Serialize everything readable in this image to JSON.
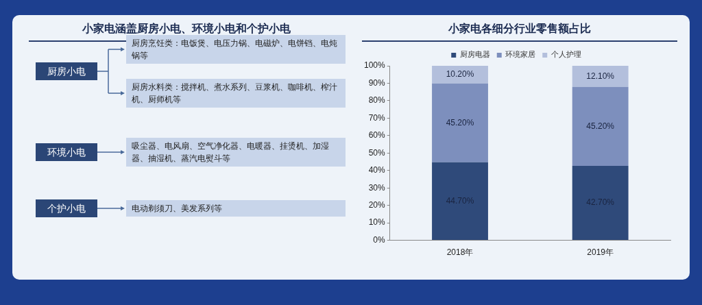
{
  "chart_data": [
    {
      "type": "other",
      "title": "小家电涵盖厨房小电、环境小电和个护小电",
      "annotations": [
        "厨房小电",
        "厨房烹饪类：电饭煲、电压力锅、电磁炉、电饼铛、电炖锅等",
        "厨房水料类：搅拌机、煮水系列、豆浆机、咖啡机、榨汁机、厨师机等",
        "环境小电",
        "吸尘器、电风扇、空气净化器、电暖器、挂烫机、加湿器、抽湿机、蒸汽电熨斗等",
        "个护小电",
        "电动剃须刀、美发系列等"
      ]
    },
    {
      "type": "bar",
      "title": "小家电各细分行业零售额占比",
      "categories": [
        "2018年",
        "2019年"
      ],
      "stacked": true,
      "legend": "top",
      "ylim": [
        0,
        100
      ],
      "yticks": [
        {
          "value": 0,
          "label": "0%"
        },
        {
          "value": 10,
          "label": "10%"
        },
        {
          "value": 20,
          "label": "20%"
        },
        {
          "value": 30,
          "label": "30%"
        },
        {
          "value": 40,
          "label": "40%"
        },
        {
          "value": 50,
          "label": "50%"
        },
        {
          "value": 60,
          "label": "60%"
        },
        {
          "value": 70,
          "label": "70%"
        },
        {
          "value": 80,
          "label": "80%"
        },
        {
          "value": 90,
          "label": "90%"
        },
        {
          "value": 100,
          "label": "100%"
        }
      ],
      "series": [
        {
          "name": "厨房电器",
          "color": "#2f4a7a",
          "values": [
            44.7,
            42.7
          ],
          "value_labels": [
            "44.70%",
            "42.70%"
          ]
        },
        {
          "name": "环境家居",
          "color": "#7d8fbd",
          "values": [
            45.2,
            45.2
          ],
          "value_labels": [
            "45.20%",
            "45.20%"
          ]
        },
        {
          "name": "个人护理",
          "color": "#b3bfdc",
          "values": [
            10.2,
            12.1
          ],
          "value_labels": [
            "10.20%",
            "12.10%"
          ]
        }
      ]
    }
  ]
}
